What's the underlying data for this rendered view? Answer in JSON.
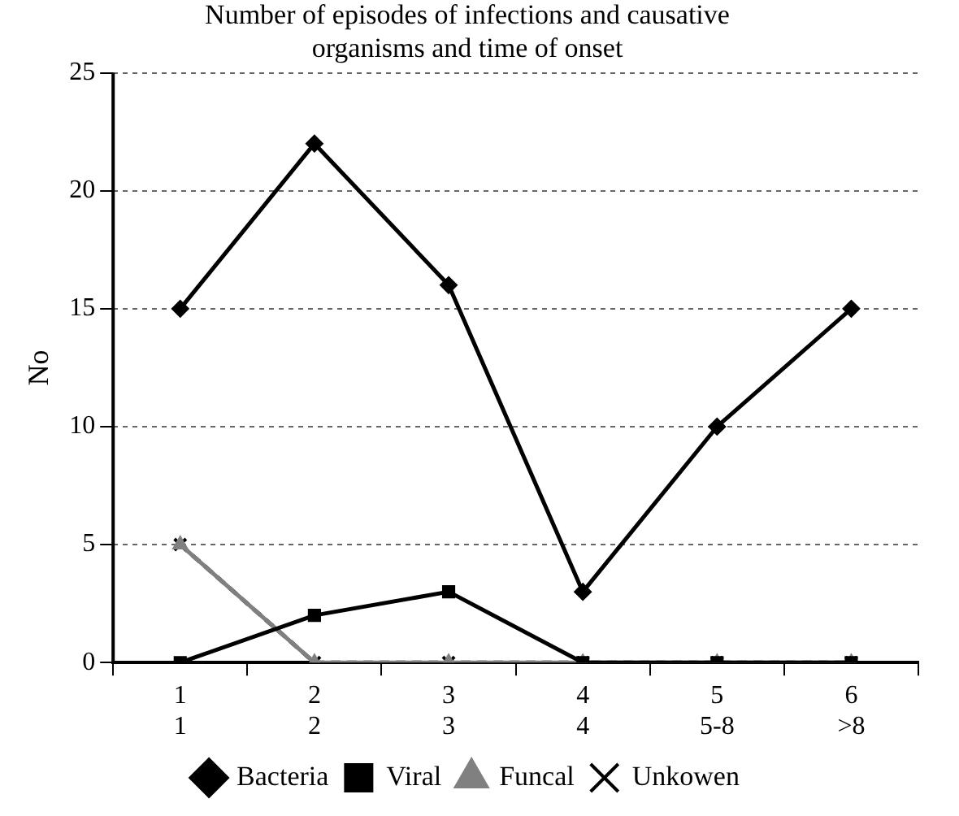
{
  "chart_data": {
    "type": "line",
    "title": "Number of episodes of infections and causative organisms and time of onset",
    "ylabel": "No",
    "categories": [
      "1\n1",
      "2\n2",
      "3\n3",
      "4\n4",
      "5\n5-8",
      "6\n>8"
    ],
    "series": [
      {
        "name": "Bacteria",
        "color": "#000000",
        "marker": "diamond",
        "values": [
          15,
          22,
          16,
          3,
          10,
          15
        ]
      },
      {
        "name": "Viral",
        "color": "#000000",
        "marker": "square",
        "values": [
          0,
          2,
          3,
          0,
          0,
          0
        ]
      },
      {
        "name": "Funcal",
        "color": "#808080",
        "marker": "triangle",
        "values": [
          5,
          0,
          0,
          0,
          0,
          0
        ]
      },
      {
        "name": "Unkowen",
        "color": "#000000",
        "marker": "cross",
        "line_style": "dashed",
        "values": [
          5,
          0,
          0,
          0,
          0,
          0
        ]
      }
    ],
    "ylim": [
      0,
      25
    ],
    "yticks": [
      0,
      5,
      10,
      15,
      20,
      25
    ],
    "grid": "y",
    "legend": "bottom"
  }
}
